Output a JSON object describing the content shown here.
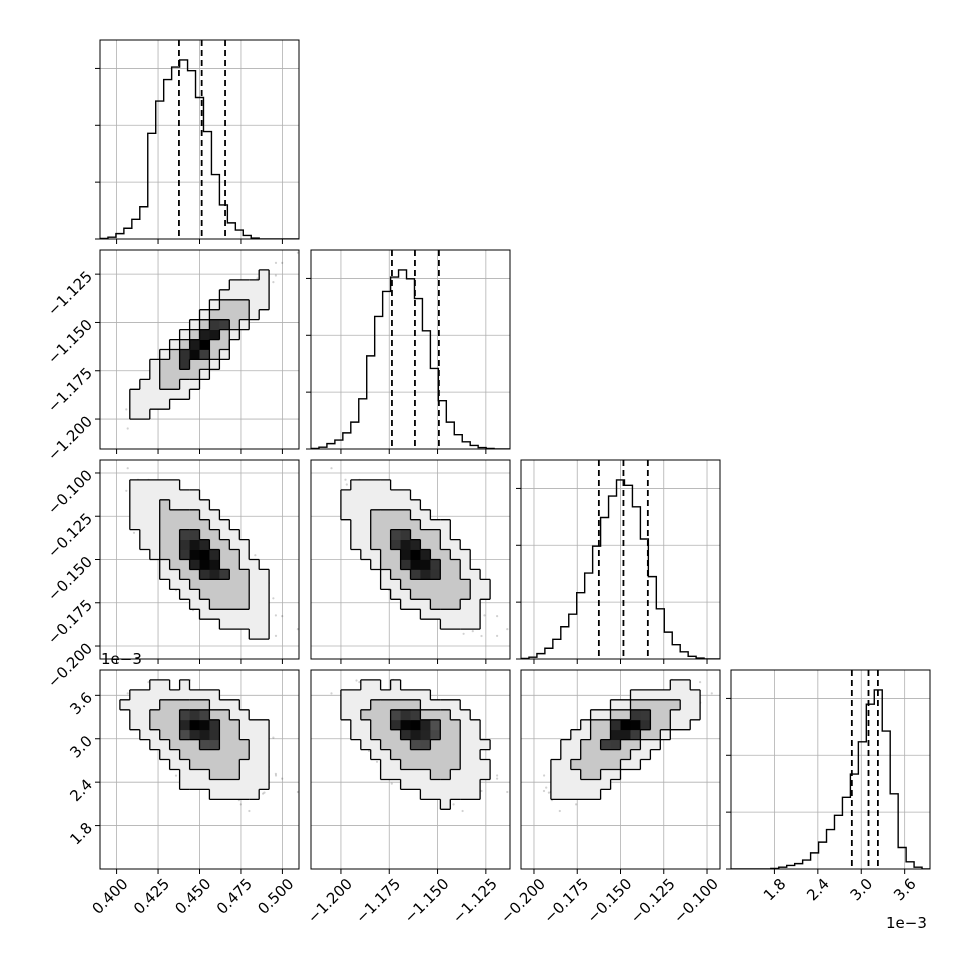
{
  "chart_data": {
    "type": "corner",
    "grid": true,
    "parameters": [
      {
        "range": [
          0.39,
          0.51
        ],
        "ticks": [
          0.4,
          0.425,
          0.45,
          0.475,
          0.5
        ],
        "tick_labels": [
          "0.400",
          "0.425",
          "0.450",
          "0.475",
          "0.500"
        ],
        "quantiles": [
          0.4376,
          0.4513,
          0.4654
        ],
        "hist_bins": 25,
        "hist_counts": [
          0.003,
          0.01,
          0.03,
          0.06,
          0.11,
          0.18,
          0.59,
          0.77,
          0.89,
          0.96,
          1.0,
          0.94,
          0.79,
          0.6,
          0.36,
          0.19,
          0.09,
          0.05,
          0.02,
          0.005,
          0.0,
          0.0,
          0.0,
          0.0,
          0.0
        ]
      },
      {
        "range": [
          -1.2155,
          -1.1125
        ],
        "ticks": [
          -1.2,
          -1.175,
          -1.15,
          -1.125
        ],
        "tick_labels": [
          "−1.200",
          "−1.175",
          "−1.150",
          "−1.125"
        ],
        "quantiles": [
          -1.1736,
          -1.1617,
          -1.1493
        ],
        "hist_bins": 25,
        "hist_counts": [
          0.003,
          0.01,
          0.03,
          0.05,
          0.09,
          0.15,
          0.28,
          0.52,
          0.74,
          0.88,
          0.96,
          1.0,
          0.95,
          0.84,
          0.66,
          0.45,
          0.27,
          0.15,
          0.08,
          0.04,
          0.02,
          0.008,
          0.003,
          0.0,
          0.0
        ]
      },
      {
        "range": [
          -0.2075,
          -0.0925
        ],
        "ticks": [
          -0.2,
          -0.175,
          -0.15,
          -0.125,
          -0.1
        ],
        "tick_labels": [
          "−0.200",
          "−0.175",
          "−0.150",
          "−0.125",
          "−0.100"
        ],
        "quantiles": [
          -0.1625,
          -0.1483,
          -0.1342
        ],
        "hist_bins": 25,
        "hist_counts": [
          0.003,
          0.01,
          0.03,
          0.06,
          0.11,
          0.18,
          0.25,
          0.37,
          0.48,
          0.63,
          0.79,
          0.91,
          1.0,
          0.97,
          0.85,
          0.67,
          0.46,
          0.28,
          0.15,
          0.08,
          0.04,
          0.015,
          0.005,
          0.0,
          0.0
        ]
      },
      {
        "range": [
          0.0012,
          0.00395
        ],
        "ticks": [
          0.0018,
          0.0024,
          0.003,
          0.0036
        ],
        "tick_labels": [
          "1.8",
          "2.4",
          "3.0",
          "3.6"
        ],
        "offset_label": "1e−3",
        "quantiles": [
          0.00287,
          0.0031,
          0.00323
        ],
        "hist_bins": 25,
        "hist_counts": [
          0.0,
          0.0,
          0.0,
          0.0,
          0.0,
          0.003,
          0.01,
          0.02,
          0.03,
          0.05,
          0.09,
          0.15,
          0.22,
          0.3,
          0.4,
          0.53,
          0.71,
          0.92,
          1.0,
          0.77,
          0.42,
          0.12,
          0.04,
          0.01,
          0.0
        ]
      }
    ],
    "contour_levels": [
      0.3935,
      0.8647,
      0.9889
    ]
  }
}
